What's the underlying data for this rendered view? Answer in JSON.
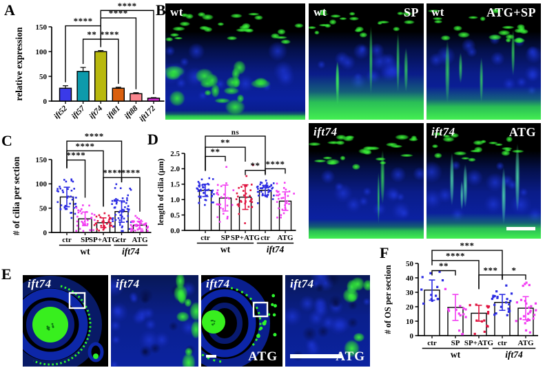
{
  "panel_letters": {
    "a": "A",
    "b": "B",
    "c": "C",
    "d": "D",
    "e": "E",
    "f": "F"
  },
  "chart_data": [
    {
      "id": "A",
      "type": "bar",
      "title": "",
      "ylabel": "relative expression",
      "ylim": [
        0,
        150
      ],
      "ytick_vals": [
        0,
        50,
        100,
        150
      ],
      "ytick_labels": [
        "0",
        "50",
        "100",
        "150"
      ],
      "categories": [
        "ift52",
        "ift57",
        "ift74",
        "ift81",
        "ift88",
        "ift172"
      ],
      "values": [
        26,
        60,
        100,
        26,
        15,
        6
      ],
      "errors": [
        5,
        8,
        2,
        2,
        2,
        1
      ],
      "bar_colors": [
        "#3a3ae8",
        "#0d9aab",
        "#b8b80e",
        "#d95f0e",
        "#f9868e",
        "#cf2fcf"
      ],
      "brackets": [
        {
          "a": 1,
          "b": 2,
          "label": "**",
          "y": 125
        },
        {
          "a": 2,
          "b": 3,
          "label": "****",
          "y": 125
        },
        {
          "a": 0,
          "b": 2,
          "label": "****",
          "y": 152
        },
        {
          "a": 2,
          "b": 4,
          "label": "****",
          "y": 168
        },
        {
          "a": 2,
          "b": 5,
          "label": "****",
          "y": 183
        }
      ]
    },
    {
      "id": "C",
      "type": "bar-scatter",
      "ylabel": "# of cilia per section",
      "ylim": [
        0,
        150
      ],
      "ytick_vals": [
        0,
        50,
        100,
        150
      ],
      "ytick_labels": [
        "0",
        "50",
        "100",
        "150"
      ],
      "categories": [
        "ctr",
        "SP",
        "SP+ATG",
        "ctr",
        "ATG"
      ],
      "means": [
        73,
        28,
        20,
        43,
        15
      ],
      "sd": [
        20,
        14,
        10,
        22,
        8
      ],
      "n": [
        40,
        32,
        32,
        58,
        38
      ],
      "dot_colors": [
        "#2b2be2",
        "#f23cf2",
        "#e01440",
        "#2b2be2",
        "#f23cf2"
      ],
      "groups": [
        {
          "label": "wt",
          "from": 0,
          "to": 2,
          "italic": false
        },
        {
          "label": "ift74",
          "from": 3,
          "to": 4,
          "italic": true
        }
      ],
      "brackets": [
        {
          "a": 0,
          "b": 1,
          "label": "****",
          "y": 149
        },
        {
          "a": 0,
          "b": 2,
          "label": "****",
          "y": 168
        },
        {
          "a": 0,
          "b": 3,
          "label": "****",
          "y": 188
        },
        {
          "a": 2,
          "b": 3,
          "label": "****",
          "y": 113
        },
        {
          "a": 3,
          "b": 4,
          "label": "****",
          "y": 113
        }
      ]
    },
    {
      "id": "D",
      "type": "bar-scatter",
      "ylabel": "length of cilia (μm)",
      "ylim": [
        0,
        2.5
      ],
      "ytick_vals": [
        0,
        0.5,
        1,
        1.5,
        2,
        2.5
      ],
      "ytick_labels": [
        "0.0",
        "0.5",
        "1.0",
        "1.5",
        "2.0",
        "2.5"
      ],
      "categories": [
        "ctr",
        "SP",
        "SP+ATG",
        "ctr",
        "ATG"
      ],
      "means": [
        1.3,
        1.05,
        1.08,
        1.3,
        0.95
      ],
      "sd": [
        0.2,
        0.42,
        0.4,
        0.16,
        0.3
      ],
      "n": [
        42,
        26,
        34,
        46,
        30
      ],
      "dot_colors": [
        "#2b2be2",
        "#f23cf2",
        "#e01440",
        "#2b2be2",
        "#f23cf2"
      ],
      "groups": [
        {
          "label": "wt",
          "from": 0,
          "to": 2,
          "italic": false
        },
        {
          "label": "ift74",
          "from": 3,
          "to": 4,
          "italic": true
        }
      ],
      "brackets": [
        {
          "a": 0,
          "b": 1,
          "label": "**",
          "y": 2.4
        },
        {
          "a": 0,
          "b": 2,
          "label": "**",
          "y": 2.7
        },
        {
          "a": 0,
          "b": 3,
          "label": "ns",
          "y": 3.06
        },
        {
          "a": 2,
          "b": 3,
          "label": "**",
          "y": 1.95
        },
        {
          "a": 3,
          "b": 4,
          "label": "****",
          "y": 2.0
        }
      ]
    },
    {
      "id": "F",
      "type": "bar-scatter",
      "ylabel": "# of OS per section",
      "ylim": [
        0,
        50
      ],
      "ytick_vals": [
        0,
        10,
        20,
        30,
        40,
        50
      ],
      "ytick_labels": [
        "0",
        "10",
        "20",
        "30",
        "40",
        "50"
      ],
      "categories": [
        "ctr",
        "SP",
        "SP+ATG",
        "ctr",
        "ATG"
      ],
      "means": [
        31.5,
        19.5,
        15.5,
        23,
        19
      ],
      "sd": [
        7,
        9,
        5.5,
        5.5,
        8
      ],
      "n": [
        13,
        14,
        14,
        22,
        26
      ],
      "dot_colors": [
        "#2b2be2",
        "#f23cf2",
        "#e01440",
        "#2b2be2",
        "#f23cf2"
      ],
      "groups": [
        {
          "label": "wt",
          "from": 0,
          "to": 2,
          "italic": false
        },
        {
          "label": "ift74",
          "from": 3,
          "to": 4,
          "italic": true
        }
      ],
      "brackets": [
        {
          "a": 0,
          "b": 1,
          "label": "**",
          "y": 45
        },
        {
          "a": 0,
          "b": 2,
          "label": "****",
          "y": 52
        },
        {
          "a": 0,
          "b": 3,
          "label": "***",
          "y": 59
        },
        {
          "a": 2,
          "b": 3,
          "label": "***",
          "y": 42
        },
        {
          "a": 3,
          "b": 4,
          "label": "*",
          "y": 42
        }
      ]
    }
  ],
  "panel_b": {
    "images": [
      {
        "left": "wt",
        "right": ""
      },
      {
        "left": "wt",
        "right": "SP"
      },
      {
        "left": "wt",
        "right": "ATG+SP"
      },
      {
        "left": "ift74",
        "right": ""
      },
      {
        "left": "ift74",
        "right": "ATG"
      }
    ]
  },
  "panel_e": {
    "images": [
      {
        "label": "ift74",
        "corner": ""
      },
      {
        "label": "ift74",
        "corner": ""
      },
      {
        "label": "ift74",
        "corner": "ATG"
      },
      {
        "label": "ift74",
        "corner": "ATG"
      }
    ]
  }
}
